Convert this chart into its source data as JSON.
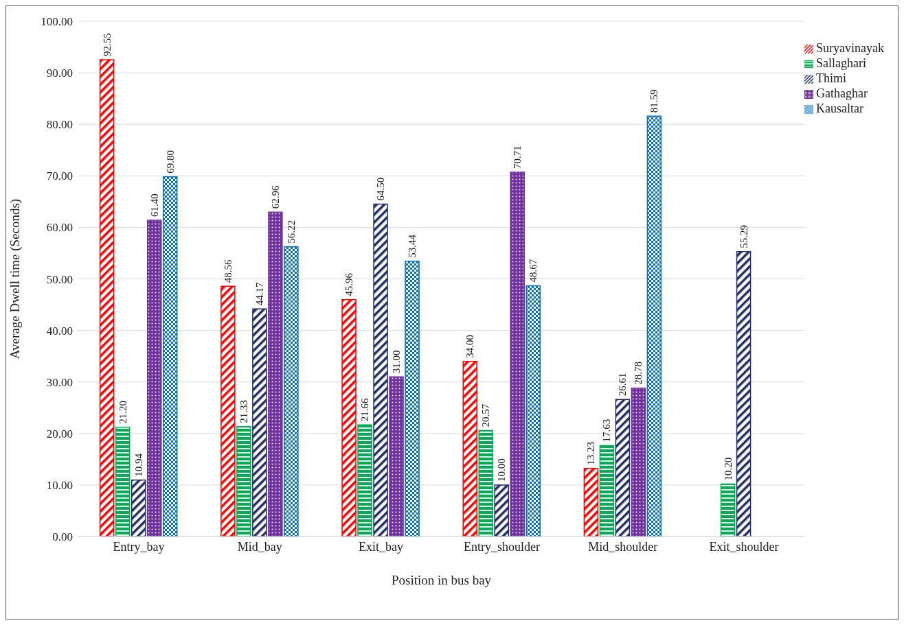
{
  "chart_data": {
    "type": "bar",
    "xlabel": "Position in bus bay",
    "ylabel": "Average Dwell time (Seconds)",
    "categories": [
      "Entry_bay",
      "Mid_bay",
      "Exit_bay",
      "Entry_shoulder",
      "Mid_shoulder",
      "Exit_shoulder"
    ],
    "series": [
      {
        "name": "Suryavinayak",
        "color": "#ff0000",
        "values": [
          92.55,
          48.56,
          45.96,
          34.0,
          13.23,
          null
        ],
        "value_labels": [
          "92.55",
          "48.56",
          "45.96",
          "34.00",
          "13.23",
          null
        ]
      },
      {
        "name": "Sallaghari",
        "color": "#00b050",
        "values": [
          21.2,
          21.33,
          21.66,
          20.57,
          17.63,
          10.2
        ],
        "value_labels": [
          "21.20",
          "21.33",
          "21.66",
          "20.57",
          "17.63",
          "10.20"
        ]
      },
      {
        "name": "Thimi",
        "color": "#1f2d6b",
        "values": [
          10.94,
          44.17,
          64.5,
          10.0,
          26.61,
          55.29
        ],
        "value_labels": [
          "10.94",
          "44.17",
          "64.50",
          "10.00",
          "26.61",
          "55.29"
        ]
      },
      {
        "name": "Gathaghar",
        "color": "#7030a0",
        "values": [
          61.4,
          62.96,
          31.0,
          70.71,
          28.78,
          null
        ],
        "value_labels": [
          "61.40",
          "62.96",
          "31.00",
          "70.71",
          "28.78",
          null
        ]
      },
      {
        "name": "Kausaltar",
        "color": "#0070c0",
        "values": [
          69.8,
          56.22,
          53.44,
          48.67,
          81.59,
          null
        ],
        "value_labels": [
          "69.80",
          "56.22",
          "53.44",
          "48.67",
          "81.59",
          null
        ]
      }
    ],
    "ylim": [
      0,
      100
    ],
    "yticks": [
      {
        "value": 0,
        "label": "0.00"
      },
      {
        "value": 10,
        "label": "10.00"
      },
      {
        "value": 20,
        "label": "20.00"
      },
      {
        "value": 30,
        "label": "30.00"
      },
      {
        "value": 40,
        "label": "40.00"
      },
      {
        "value": 50,
        "label": "50.00"
      },
      {
        "value": 60,
        "label": "60.00"
      },
      {
        "value": 70,
        "label": "70.00"
      },
      {
        "value": 80,
        "label": "80.00"
      },
      {
        "value": 90,
        "label": "90.00"
      },
      {
        "value": 100,
        "label": "100.00"
      }
    ],
    "grid": "y",
    "legend": "top right"
  }
}
